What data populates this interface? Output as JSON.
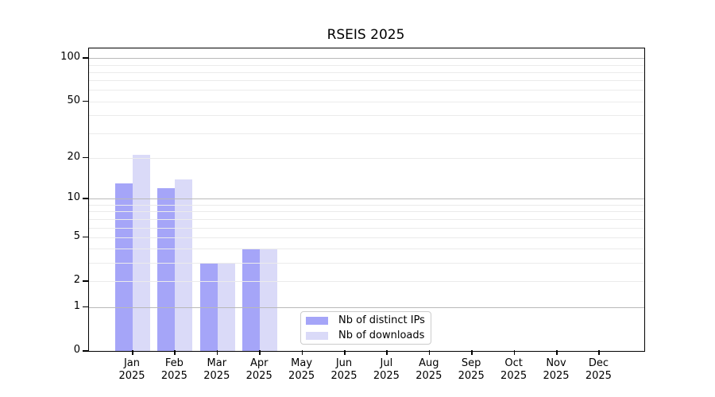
{
  "chart_data": {
    "type": "bar",
    "title": "RSEIS 2025",
    "x_year_label": "2025",
    "categories": [
      "Jan",
      "Feb",
      "Mar",
      "Apr",
      "May",
      "Jun",
      "Jul",
      "Aug",
      "Sep",
      "Oct",
      "Nov",
      "Dec"
    ],
    "series": [
      {
        "name": "Nb of distinct IPs",
        "color": "#a5a5f8",
        "values": [
          13,
          12,
          3,
          4,
          0,
          0,
          0,
          0,
          0,
          0,
          0,
          0
        ]
      },
      {
        "name": "Nb of downloads",
        "color": "#dadaf8",
        "values": [
          21,
          14,
          3,
          4,
          0,
          0,
          0,
          0,
          0,
          0,
          0,
          0
        ]
      }
    ],
    "y_axis": {
      "scale": "log1p",
      "ticks": [
        100,
        50,
        20,
        10,
        5,
        2,
        1,
        0
      ],
      "major_gridlines": [
        1,
        10,
        100
      ],
      "minor_gridlines": [
        3,
        4,
        6,
        7,
        8,
        9,
        30,
        40,
        60,
        70,
        80,
        90
      ],
      "ylim": [
        0,
        117
      ]
    },
    "grid": true,
    "legend_position": "lower center"
  },
  "colors": {
    "axis": "#000000",
    "major_grid": "#b9b9b9",
    "minor_grid": "#ebebeb",
    "legend_border": "#cccccc",
    "background": "#ffffff"
  }
}
